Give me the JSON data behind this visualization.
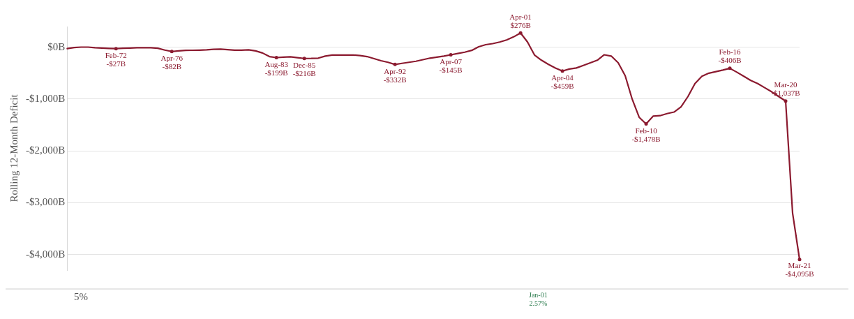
{
  "chart_data": [
    {
      "type": "line",
      "ylabel": "Rolling 12-Month Deficit",
      "categories": [
        null,
        null,
        null,
        null,
        null,
        null,
        null,
        null,
        null,
        null,
        null,
        null,
        null,
        null,
        null,
        null,
        null,
        null,
        null,
        null,
        null,
        null,
        null,
        null,
        null,
        null,
        null,
        null,
        null,
        null,
        null,
        null,
        null,
        null,
        null,
        null,
        null,
        null,
        null,
        null,
        null,
        null,
        null,
        null,
        null,
        null,
        null,
        null,
        null,
        null,
        null,
        null,
        null,
        null,
        null,
        null,
        null,
        null,
        null,
        null,
        null,
        null,
        null,
        null,
        null,
        null,
        null,
        null,
        null,
        null,
        null,
        null,
        null,
        null,
        null,
        null,
        null,
        null,
        null,
        null,
        null,
        null,
        null,
        null,
        null,
        null,
        null,
        null,
        null,
        null,
        null,
        null,
        null,
        null,
        null,
        null,
        null,
        null,
        null,
        null,
        null,
        null,
        null,
        null,
        null,
        null
      ],
      "series": [
        {
          "color": "#8b1a2f",
          "values": [
            -25,
            -5,
            3,
            3,
            -10,
            -15,
            -22,
            -27,
            -20,
            -15,
            -10,
            -8,
            -8,
            -20,
            -55,
            -82,
            -70,
            -60,
            -58,
            -55,
            -50,
            -40,
            -35,
            -45,
            -55,
            -55,
            -50,
            -70,
            -110,
            -180,
            -199,
            -190,
            -185,
            -200,
            -216,
            -215,
            -210,
            -170,
            -150,
            -150,
            -150,
            -150,
            -160,
            -180,
            -220,
            -260,
            -290,
            -332,
            -310,
            -290,
            -270,
            -240,
            -210,
            -190,
            -170,
            -145,
            -120,
            -95,
            -60,
            10,
            50,
            70,
            100,
            140,
            200,
            276,
            100,
            -150,
            -250,
            -330,
            -400,
            -459,
            -420,
            -400,
            -350,
            -300,
            -250,
            -145,
            -170,
            -300,
            -550,
            -1000,
            -1350,
            -1478,
            -1330,
            -1320,
            -1280,
            -1250,
            -1150,
            -950,
            -700,
            -560,
            -500,
            -470,
            -440,
            -406,
            -480,
            -560,
            -640,
            -700,
            -780,
            -860,
            -950,
            -1037,
            -3200,
            -4095
          ]
        }
      ],
      "ylim": [
        -4300,
        400
      ],
      "yticks": [
        {
          "value": 0,
          "label": "$0B"
        },
        {
          "value": -1000,
          "label": "-$1,000B"
        },
        {
          "value": -2000,
          "label": "-$2,000B"
        },
        {
          "value": -3000,
          "label": "-$3,000B"
        },
        {
          "value": -4000,
          "label": "-$4,000B"
        }
      ],
      "tick_labels": "y",
      "grid": "y",
      "legend": false,
      "annotations": [
        {
          "text": "Feb-72\n-$27B",
          "y": -27
        },
        {
          "text": "Apr-76\n-$82B",
          "y": -82
        },
        {
          "text": "Aug-83\n-$199B",
          "y": -199
        },
        {
          "text": "Dec-85\n-$216B",
          "y": -216
        },
        {
          "text": "Apr-92\n-$332B",
          "y": -332
        },
        {
          "text": "Apr-01\n$276B",
          "y": 276
        },
        {
          "text": "Apr-04\n-$459B",
          "y": -459
        },
        {
          "text": "Apr-07\n-$145B",
          "y": -145
        },
        {
          "text": "Feb-10\n-$1,478B",
          "y": -1478
        },
        {
          "text": "Feb-16\n-$406B",
          "y": -406
        },
        {
          "text": "Mar-20\n-$1,037B",
          "y": -1037
        },
        {
          "text": "Mar-21\n-$4,095B",
          "y": -4095
        }
      ]
    },
    {
      "type": "other",
      "annotations": [
        "5%",
        "Jan-01\n2.57%"
      ]
    }
  ]
}
